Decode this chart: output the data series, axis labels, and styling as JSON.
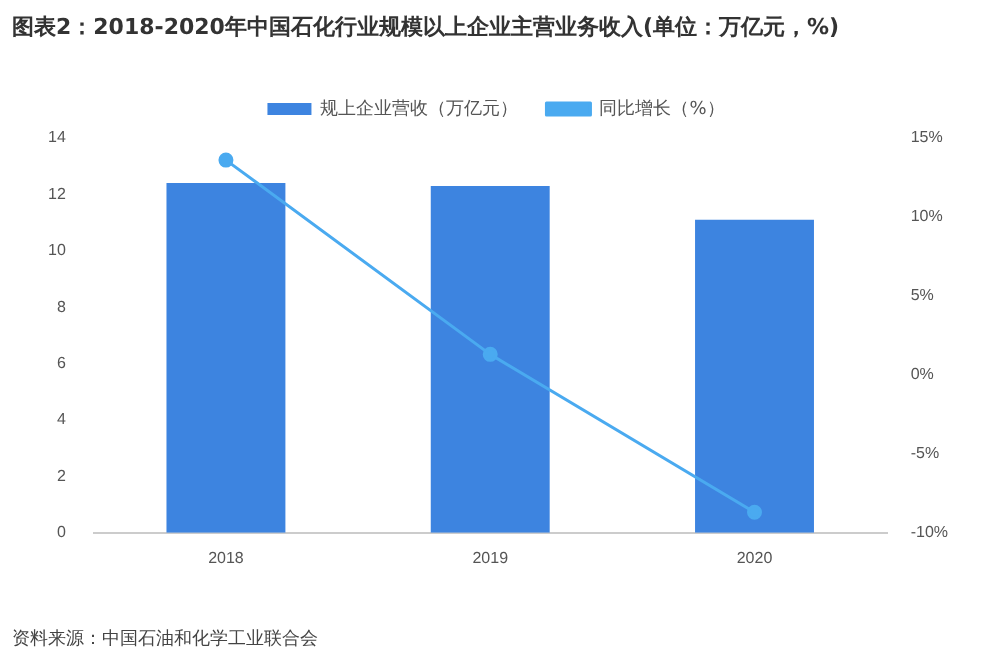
{
  "chart_data": {
    "type": "bar",
    "title": "图表2：2018-2020年中国石化行业规模以上企业主营业务收入(单位：万亿元，%)",
    "categories": [
      "2018",
      "2019",
      "2020"
    ],
    "series": [
      {
        "name": "规上企业营收（万亿元）",
        "color": "#3d84e0",
        "values": [
          12.4,
          12.3,
          11.1
        ]
      },
      {
        "name": "同比增长（%）",
        "type": "line",
        "axis": "y2",
        "color": "#4aaaf0",
        "marker": "circle",
        "values": [
          13.6,
          1.3,
          -8.7
        ]
      }
    ],
    "ylim": [
      0,
      14
    ],
    "yticks": [
      0,
      2,
      4,
      6,
      8,
      10,
      12,
      14
    ],
    "y2lim": [
      -10,
      15
    ],
    "y2ticks": [
      {
        "value": -10,
        "label": "-10%"
      },
      {
        "value": -5,
        "label": "-5%"
      },
      {
        "value": 0,
        "label": "0%"
      },
      {
        "value": 5,
        "label": "5%"
      },
      {
        "value": 10,
        "label": "10%"
      },
      {
        "value": 15,
        "label": "15%"
      }
    ],
    "grid": false,
    "legend": "top",
    "annotations": [
      "资料来源：中国石油和化学工业联合会"
    ]
  }
}
